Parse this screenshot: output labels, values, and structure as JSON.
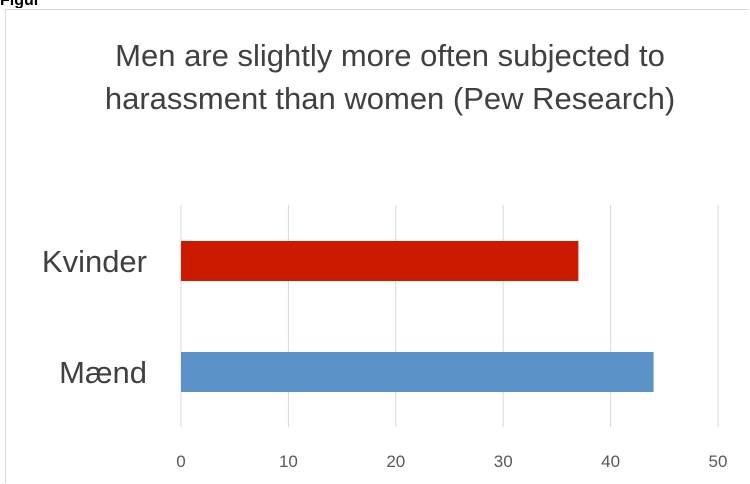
{
  "figure_label": "Figur",
  "chart_data": {
    "type": "bar",
    "orientation": "horizontal",
    "title": "Men are slightly more often subjected to harassment than women (Pew Research)",
    "categories": [
      "Kvinder",
      "Mænd"
    ],
    "values": [
      37,
      44
    ],
    "colors": [
      "#cc1a00",
      "#5b92c8"
    ],
    "xlim": [
      0,
      50
    ],
    "xticks": [
      "0",
      "10",
      "20",
      "30",
      "40",
      "50"
    ],
    "xlabel": "",
    "ylabel": "",
    "grid": "vertical"
  }
}
